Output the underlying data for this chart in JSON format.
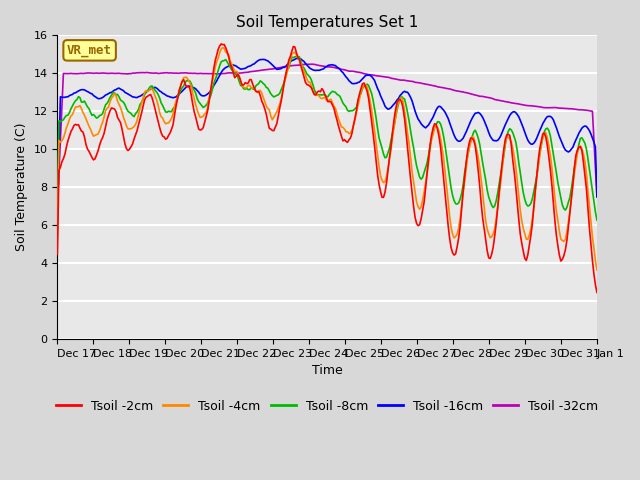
{
  "title": "Soil Temperatures Set 1",
  "xlabel": "Time",
  "ylabel": "Soil Temperature (C)",
  "ylim": [
    0,
    16
  ],
  "yticks": [
    0,
    2,
    4,
    6,
    8,
    10,
    12,
    14,
    16
  ],
  "colors": {
    "Tsoil -2cm": "#ff0000",
    "Tsoil -4cm": "#ff8800",
    "Tsoil -8cm": "#00bb00",
    "Tsoil -16cm": "#0000ff",
    "Tsoil -32cm": "#bb00bb"
  },
  "bg_color": "#d8d8d8",
  "plot_bg_color": "#e8e8e8",
  "annotation_label": "VR_met",
  "annotation_bg": "#ffff99",
  "annotation_border": "#996600",
  "tick_labels": [
    "Dec 17",
    "Dec 18",
    "Dec 19",
    "Dec 20",
    "Dec 21",
    "Dec 22",
    "Dec 23",
    "Dec 24",
    "Dec 25",
    "Dec 26",
    "Dec 27",
    "Dec 28",
    "Dec 29",
    "Dec 30",
    "Dec 31",
    "Jan 1"
  ],
  "title_fontsize": 11,
  "axis_fontsize": 9,
  "tick_fontsize": 8,
  "legend_fontsize": 9
}
